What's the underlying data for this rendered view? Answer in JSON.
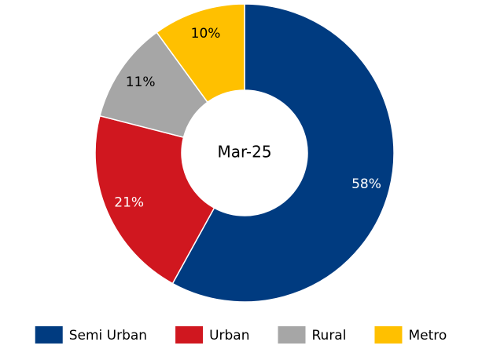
{
  "chart_data": {
    "type": "donut",
    "center_label": "Mar-25",
    "categories": [
      "Semi Urban",
      "Urban",
      "Rural",
      "Metro"
    ],
    "values": [
      58,
      21,
      11,
      10
    ],
    "value_labels": [
      "58%",
      "21%",
      "11%",
      "10%"
    ],
    "colors": [
      "#003b80",
      "#d0171f",
      "#a6a6a6",
      "#ffc000"
    ],
    "label_colors": [
      "#ffffff",
      "#ffffff",
      "#000000",
      "#000000"
    ],
    "legend": "bottom"
  }
}
